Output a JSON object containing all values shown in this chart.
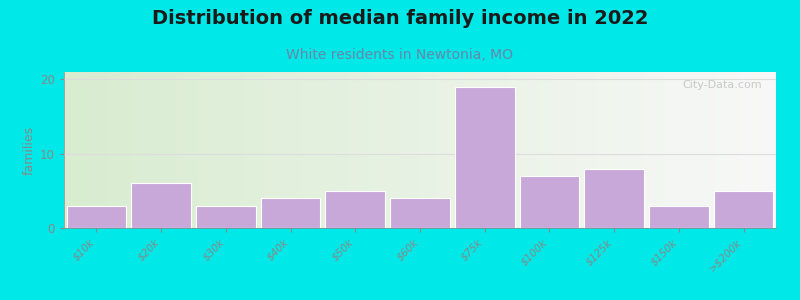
{
  "title": "Distribution of median family income in 2022",
  "subtitle": "White residents in Newtonia, MO",
  "categories": [
    "$10k",
    "$20k",
    "$30k",
    "$40k",
    "$50k",
    "$60k",
    "$75k",
    "$100k",
    "$125k",
    "$150k",
    ">$200k"
  ],
  "values": [
    3,
    6,
    3,
    4,
    5,
    4,
    19,
    7,
    8,
    3,
    5
  ],
  "bar_color": "#c8a8d8",
  "bar_edge_color": "#ffffff",
  "background_outer": "#00e8e8",
  "plot_bg_left": "#d8ecd0",
  "plot_bg_right": "#f5f5f5",
  "ylabel": "families",
  "ylim": [
    0,
    21
  ],
  "yticks": [
    0,
    10,
    20
  ],
  "title_fontsize": 14,
  "subtitle_fontsize": 10,
  "subtitle_color": "#6688aa",
  "watermark": "City-Data.com",
  "watermark_color": "#aaaaaa",
  "grid_color": "#dddddd",
  "tick_color": "#888888",
  "spine_color": "#888888"
}
